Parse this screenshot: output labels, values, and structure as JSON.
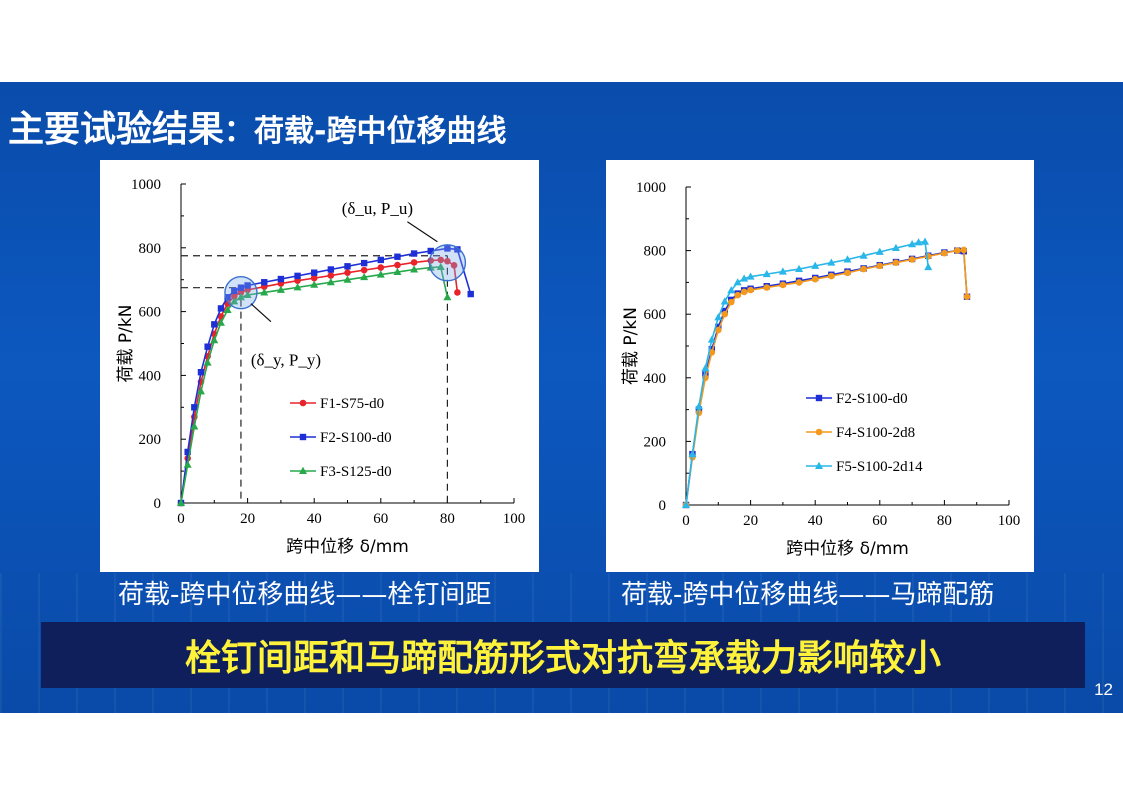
{
  "slide": {
    "title_main": "主要试验结果",
    "title_colon": "：",
    "title_sub": "荷载-跨中位移曲线",
    "caption_left": "荷载-跨中位移曲线——栓钉间距",
    "caption_right": "荷载-跨中位移曲线——马蹄配筋",
    "conclusion": "栓钉间距和马蹄配筋形式对抗弯承载力影响较小",
    "page_number": "12"
  },
  "colors": {
    "band": "#0c56bb",
    "conclusion_bg": "#0e1f5c",
    "conclusion_text": "#fff23a",
    "red": "#e8232a",
    "blue": "#1f2fd6",
    "green": "#27a84a",
    "orange": "#f39a1e",
    "cyan": "#29b6e8"
  },
  "chart_data": [
    {
      "type": "line",
      "xlabel": "跨中位移 δ/mm",
      "ylabel": "荷载 P/kN",
      "xlim": [
        0,
        100
      ],
      "ylim": [
        0,
        1000
      ],
      "xticks": [
        "0",
        "20",
        "40",
        "60",
        "80",
        "100"
      ],
      "yticks": [
        "0",
        "200",
        "400",
        "600",
        "800",
        "1000"
      ],
      "grid": false,
      "legend_position": "center",
      "annotations": {
        "ultimate": "(δ_u, P_u)",
        "yield": "(δ_y, P_y)"
      },
      "reference_lines": {
        "yield_x": 18,
        "yield_y": 675,
        "ultimate_x": 80,
        "ultimate_y": 775
      },
      "series": [
        {
          "name": "F1-S75-d0",
          "color": "red",
          "marker": "circle",
          "x": [
            0,
            2,
            4,
            6,
            8,
            10,
            12,
            14,
            16,
            18,
            20,
            25,
            30,
            35,
            40,
            45,
            50,
            55,
            60,
            65,
            70,
            75,
            78,
            80,
            82,
            83
          ],
          "y": [
            0,
            140,
            270,
            380,
            460,
            530,
            585,
            625,
            648,
            660,
            668,
            678,
            688,
            697,
            705,
            713,
            722,
            730,
            738,
            746,
            754,
            760,
            762,
            758,
            745,
            660
          ]
        },
        {
          "name": "F2-S100-d0",
          "color": "blue",
          "marker": "square",
          "x": [
            0,
            2,
            4,
            6,
            8,
            10,
            12,
            14,
            16,
            18,
            20,
            25,
            30,
            35,
            40,
            45,
            50,
            55,
            60,
            65,
            70,
            75,
            80,
            83,
            87
          ],
          "y": [
            0,
            160,
            300,
            410,
            490,
            560,
            610,
            645,
            665,
            675,
            682,
            692,
            702,
            712,
            722,
            732,
            742,
            752,
            762,
            772,
            782,
            790,
            798,
            795,
            655
          ]
        },
        {
          "name": "F3-S125-d0",
          "color": "green",
          "marker": "triangle",
          "x": [
            0,
            2,
            4,
            6,
            8,
            10,
            12,
            14,
            16,
            18,
            20,
            25,
            30,
            35,
            40,
            45,
            50,
            55,
            60,
            65,
            70,
            75,
            78,
            80
          ],
          "y": [
            0,
            120,
            240,
            350,
            440,
            510,
            565,
            605,
            632,
            645,
            652,
            660,
            668,
            676,
            684,
            692,
            700,
            708,
            716,
            724,
            732,
            738,
            740,
            645
          ]
        }
      ]
    },
    {
      "type": "line",
      "xlabel": "跨中位移 δ/mm",
      "ylabel": "荷载 P/kN",
      "xlim": [
        0,
        100
      ],
      "ylim": [
        0,
        1000
      ],
      "xticks": [
        "0",
        "20",
        "40",
        "60",
        "80",
        "100"
      ],
      "yticks": [
        "0",
        "200",
        "400",
        "600",
        "800",
        "1000"
      ],
      "grid": false,
      "legend_position": "center",
      "series": [
        {
          "name": "F2-S100-d0",
          "color": "blue",
          "marker": "square",
          "x": [
            0,
            2,
            4,
            6,
            8,
            10,
            12,
            14,
            16,
            18,
            20,
            25,
            30,
            35,
            40,
            45,
            50,
            55,
            60,
            65,
            70,
            75,
            80,
            84,
            86,
            87
          ],
          "y": [
            0,
            160,
            300,
            410,
            490,
            560,
            610,
            645,
            665,
            675,
            680,
            688,
            696,
            705,
            714,
            724,
            734,
            744,
            754,
            764,
            774,
            784,
            794,
            800,
            798,
            655
          ]
        },
        {
          "name": "F4-S100-2d8",
          "color": "orange",
          "marker": "circle",
          "x": [
            0,
            2,
            4,
            6,
            8,
            10,
            12,
            14,
            16,
            18,
            20,
            25,
            30,
            35,
            40,
            45,
            50,
            55,
            60,
            65,
            70,
            75,
            80,
            84,
            86,
            87
          ],
          "y": [
            0,
            150,
            290,
            400,
            480,
            550,
            600,
            638,
            660,
            670,
            676,
            684,
            692,
            700,
            710,
            720,
            730,
            742,
            752,
            762,
            772,
            782,
            792,
            800,
            802,
            655
          ]
        },
        {
          "name": "F5-S100-2d14",
          "color": "cyan",
          "marker": "triangle",
          "x": [
            0,
            2,
            4,
            6,
            8,
            10,
            12,
            14,
            16,
            18,
            20,
            25,
            30,
            35,
            40,
            45,
            50,
            55,
            60,
            65,
            70,
            72,
            74,
            75
          ],
          "y": [
            0,
            160,
            310,
            430,
            520,
            590,
            640,
            675,
            700,
            712,
            718,
            726,
            734,
            742,
            752,
            762,
            772,
            784,
            796,
            808,
            820,
            826,
            828,
            748
          ]
        }
      ]
    }
  ]
}
